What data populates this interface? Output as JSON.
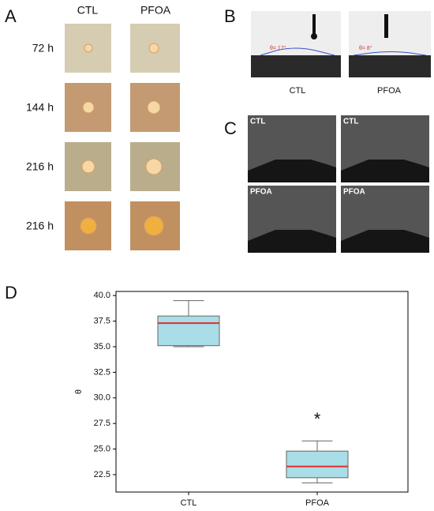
{
  "panels": {
    "A": {
      "label": "A",
      "columns": [
        "CTL",
        "PFOA"
      ],
      "rows": [
        "72 h",
        "144 h",
        "216 h",
        "216 h"
      ]
    },
    "B": {
      "label": "B",
      "angles": [
        "θ= 17°",
        "θ= 8°"
      ],
      "columns": [
        "CTL",
        "PFOA"
      ]
    },
    "C": {
      "label": "C",
      "image_labels": [
        "CTL",
        "CTL",
        "PFOA",
        "PFOA"
      ]
    },
    "D": {
      "label": "D"
    }
  },
  "chart_data": {
    "type": "box",
    "ylabel": "θ",
    "categories": [
      "CTL",
      "PFOA"
    ],
    "low": [
      35.0,
      21.7
    ],
    "q1": [
      35.1,
      22.2
    ],
    "median": [
      37.3,
      23.3
    ],
    "q3": [
      38.0,
      24.8
    ],
    "high": [
      39.5,
      25.8
    ],
    "box_color": "#a9dde8",
    "median_color": "#e0302a",
    "ylim": [
      20.8,
      40.4
    ],
    "yticks": [
      {
        "value": 22.5,
        "label": "22.5"
      },
      {
        "value": 25,
        "label": "25.0"
      },
      {
        "value": 27.5,
        "label": "27.5"
      },
      {
        "value": 30,
        "label": "30.0"
      },
      {
        "value": 32.5,
        "label": "32.5"
      },
      {
        "value": 35,
        "label": "35.0"
      },
      {
        "value": 37.5,
        "label": "37.5"
      },
      {
        "value": 40,
        "label": "40.0"
      }
    ],
    "annotation": "*"
  }
}
